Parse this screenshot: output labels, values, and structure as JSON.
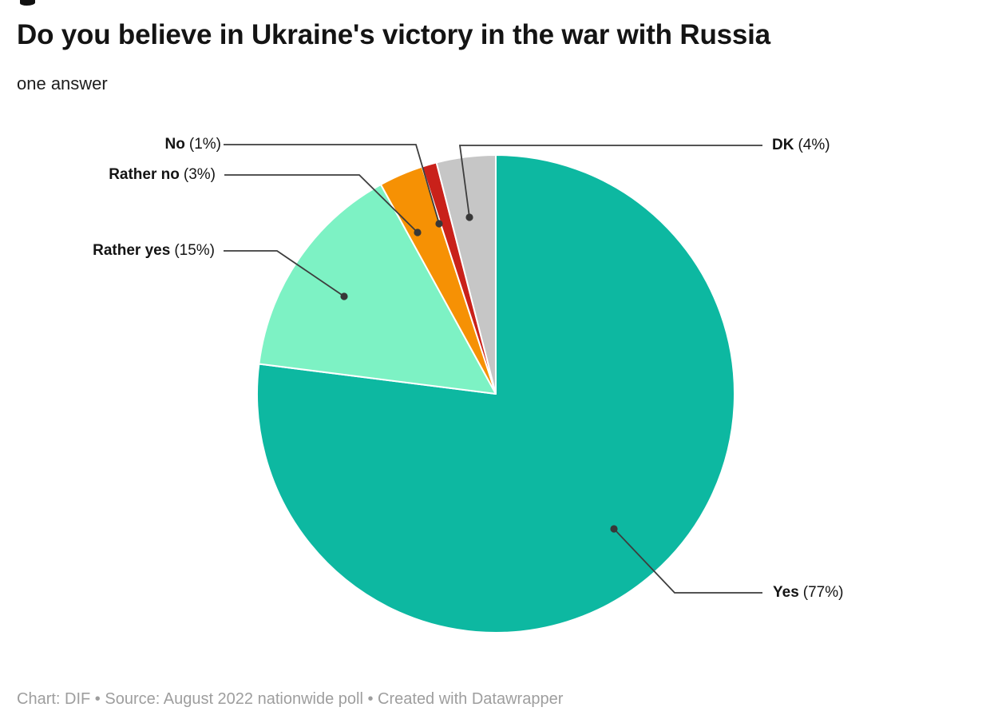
{
  "header": {
    "title": "Do you believe in Ukraine's victory in the war with Russia",
    "subtitle": "one answer"
  },
  "footer": {
    "text": "Chart: DIF • Source: August 2022 nationwide poll • Created with Datawrapper"
  },
  "chart_data": {
    "type": "pie",
    "title": "Do you believe in Ukraine's victory in the war with Russia",
    "subtitle": "one answer",
    "categories": [
      "Yes",
      "Rather yes",
      "Rather no",
      "No",
      "DK"
    ],
    "values": [
      77,
      15,
      3,
      1,
      4
    ],
    "unit": "%",
    "start_angle_deg": 0,
    "direction": "clockwise",
    "legend_position": "callout-labels",
    "slices": [
      {
        "label": "Yes",
        "value": 77,
        "pct_label": "(77%)",
        "color": "#0db8a1"
      },
      {
        "label": "Rather yes",
        "value": 15,
        "pct_label": "(15%)",
        "color": "#7df2c4"
      },
      {
        "label": "Rather no",
        "value": 3,
        "pct_label": "(3%)",
        "color": "#f69104"
      },
      {
        "label": "No",
        "value": 1,
        "pct_label": "(1%)",
        "color": "#c9211a"
      },
      {
        "label": "DK",
        "value": 4,
        "pct_label": "(4%)",
        "color": "#c6c6c6"
      }
    ],
    "leader_line_color": "#3d3d3d"
  }
}
